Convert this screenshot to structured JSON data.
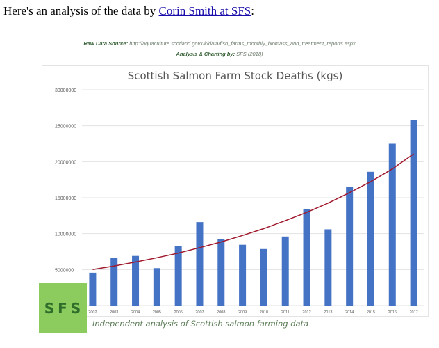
{
  "intro": {
    "prefix": "Here's an analysis of the data by ",
    "link_text": "Corin Smith at SFS",
    "suffix": ":"
  },
  "source": {
    "label": "Raw Data Source:",
    "value": " http://aquaculture.scotland.gov.uk/data/fish_farms_monthly_biomass_and_treatment_reports.aspx"
  },
  "credit": {
    "label": "Analysis & Charting by:",
    "value": " SFS (2018)"
  },
  "logo": {
    "text": "SFS"
  },
  "caption": "Independent analysis of Scottish salmon farming data",
  "colors": {
    "bar": "#4472c4",
    "trendline": "#a0182c",
    "gridline": "#e3e3e3",
    "logo_bg": "#8ccb5e",
    "logo_text": "#2f6e2a"
  },
  "chart_data": {
    "type": "bar",
    "title": "Scottish Salmon Farm Stock Deaths (kgs)",
    "xlabel": "",
    "ylabel": "",
    "categories": [
      "2002",
      "2003",
      "2004",
      "2005",
      "2006",
      "2007",
      "2008",
      "2009",
      "2010",
      "2011",
      "2012",
      "2013",
      "2014",
      "2015",
      "2016",
      "2017"
    ],
    "series": [
      {
        "name": "Stock Deaths (kgs)",
        "values": [
          4560000,
          6600000,
          6900000,
          5200000,
          8250000,
          11600000,
          9200000,
          8450000,
          7860000,
          9600000,
          13400000,
          10600000,
          16500000,
          18600000,
          22500000,
          25800000
        ]
      },
      {
        "name": "Exponential trendline",
        "type": "line",
        "values": [
          5000000,
          5500000,
          6050000,
          6650000,
          7300000,
          8050000,
          8850000,
          9750000,
          10700000,
          11800000,
          12950000,
          14250000,
          15700000,
          17250000,
          19000000,
          21100000
        ]
      }
    ],
    "yticks": [
      "0",
      "5000000",
      "10000000",
      "15000000",
      "20000000",
      "25000000",
      "30000000"
    ],
    "ylim": [
      0,
      30000000
    ],
    "grid": true,
    "legend": "none"
  }
}
